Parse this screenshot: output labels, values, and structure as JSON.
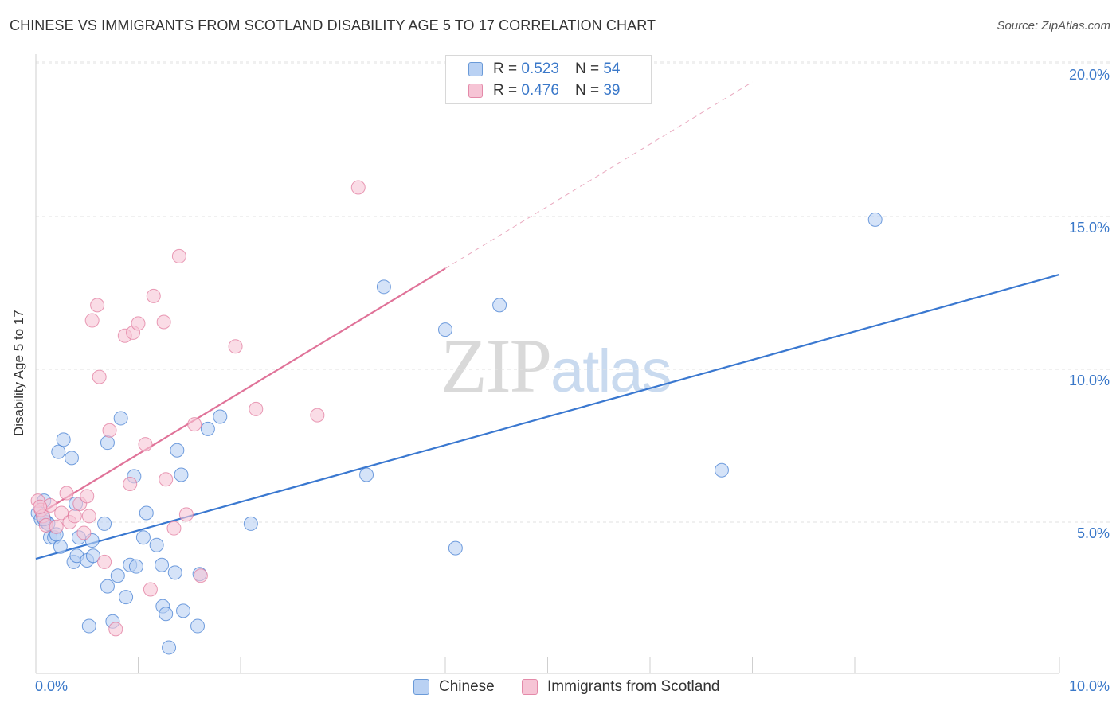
{
  "chart_data": {
    "type": "scatter",
    "title": "CHINESE VS IMMIGRANTS FROM SCOTLAND DISABILITY AGE 5 TO 17 CORRELATION CHART",
    "source": "Source: ZipAtlas.com",
    "ylabel": "Disability Age 5 to 17",
    "xlabel": "",
    "xlim": [
      0,
      10
    ],
    "ylim": [
      0,
      20
    ],
    "x_tick_labels": [
      {
        "value": 0,
        "label": "0.0%"
      },
      {
        "value": 10,
        "label": "10.0%"
      }
    ],
    "y_tick_labels": [
      {
        "value": 5,
        "label": "5.0%"
      },
      {
        "value": 10,
        "label": "10.0%"
      },
      {
        "value": 15,
        "label": "15.0%"
      },
      {
        "value": 20,
        "label": "20.0%"
      }
    ],
    "grid": true,
    "watermark": {
      "part1": "ZIP",
      "part2": "atlas"
    },
    "legend": {
      "placement": "top-center",
      "entries": [
        {
          "r_label": "R =",
          "r_value": "0.523",
          "n_label": "N =",
          "n_value": "54"
        },
        {
          "r_label": "R =",
          "r_value": "0.476",
          "n_label": "N =",
          "n_value": "39"
        }
      ]
    },
    "series": [
      {
        "name": "Chinese",
        "color": "#3a78d0",
        "fill": "#b9d1f3",
        "trend": {
          "x": [
            0.0,
            10.0
          ],
          "y": [
            3.8,
            13.1
          ]
        },
        "points": [
          [
            0.02,
            5.3
          ],
          [
            0.05,
            5.1
          ],
          [
            0.08,
            5.7
          ],
          [
            0.1,
            5.0
          ],
          [
            0.12,
            4.95
          ],
          [
            0.14,
            4.5
          ],
          [
            0.18,
            4.5
          ],
          [
            0.22,
            7.3
          ],
          [
            0.24,
            4.2
          ],
          [
            0.27,
            7.7
          ],
          [
            0.35,
            7.1
          ],
          [
            0.37,
            3.7
          ],
          [
            0.39,
            5.6
          ],
          [
            0.4,
            3.9
          ],
          [
            0.42,
            4.5
          ],
          [
            0.5,
            3.75
          ],
          [
            0.52,
            1.6
          ],
          [
            0.55,
            4.4
          ],
          [
            0.56,
            3.9
          ],
          [
            0.67,
            4.95
          ],
          [
            0.7,
            2.9
          ],
          [
            0.7,
            7.6
          ],
          [
            0.75,
            1.75
          ],
          [
            0.8,
            3.25
          ],
          [
            0.83,
            8.4
          ],
          [
            0.88,
            2.55
          ],
          [
            0.92,
            3.6
          ],
          [
            0.96,
            6.5
          ],
          [
            0.98,
            3.55
          ],
          [
            1.05,
            4.5
          ],
          [
            1.08,
            5.3
          ],
          [
            1.18,
            4.25
          ],
          [
            1.23,
            3.6
          ],
          [
            1.24,
            2.25
          ],
          [
            1.27,
            2.0
          ],
          [
            1.3,
            0.9
          ],
          [
            1.36,
            3.35
          ],
          [
            1.38,
            7.35
          ],
          [
            1.42,
            6.55
          ],
          [
            1.44,
            2.1
          ],
          [
            1.58,
            1.6
          ],
          [
            1.6,
            3.3
          ],
          [
            1.68,
            8.05
          ],
          [
            1.8,
            8.45
          ],
          [
            2.1,
            4.95
          ],
          [
            3.23,
            6.55
          ],
          [
            3.4,
            12.7
          ],
          [
            4.0,
            11.3
          ],
          [
            4.1,
            4.15
          ],
          [
            4.53,
            12.1
          ],
          [
            6.7,
            6.7
          ],
          [
            8.2,
            14.9
          ],
          [
            0.08,
            5.1
          ],
          [
            0.2,
            4.6
          ]
        ]
      },
      {
        "name": "Immigrants from Scotland",
        "color": "#e07399",
        "fill": "#f6c4d5",
        "trend": {
          "x": [
            0.0,
            4.0
          ],
          "y": [
            5.2,
            13.3
          ]
        },
        "trend_ext": {
          "x": [
            4.0,
            7.0
          ],
          "y": [
            13.3,
            19.4
          ]
        },
        "points": [
          [
            0.02,
            5.7
          ],
          [
            0.05,
            5.4
          ],
          [
            0.07,
            5.2
          ],
          [
            0.1,
            4.9
          ],
          [
            0.14,
            5.55
          ],
          [
            0.2,
            4.85
          ],
          [
            0.25,
            5.3
          ],
          [
            0.3,
            5.95
          ],
          [
            0.33,
            5.0
          ],
          [
            0.38,
            5.2
          ],
          [
            0.43,
            5.6
          ],
          [
            0.47,
            4.65
          ],
          [
            0.5,
            5.85
          ],
          [
            0.52,
            5.2
          ],
          [
            0.55,
            11.6
          ],
          [
            0.6,
            12.1
          ],
          [
            0.62,
            9.75
          ],
          [
            0.67,
            3.7
          ],
          [
            0.72,
            8.0
          ],
          [
            0.78,
            1.5
          ],
          [
            0.87,
            11.1
          ],
          [
            0.92,
            6.25
          ],
          [
            0.95,
            11.2
          ],
          [
            1.0,
            11.5
          ],
          [
            1.07,
            7.55
          ],
          [
            1.12,
            2.8
          ],
          [
            1.15,
            12.4
          ],
          [
            1.25,
            11.55
          ],
          [
            1.27,
            6.4
          ],
          [
            1.35,
            4.8
          ],
          [
            1.4,
            13.7
          ],
          [
            1.47,
            5.25
          ],
          [
            1.55,
            8.2
          ],
          [
            1.61,
            3.25
          ],
          [
            1.95,
            10.75
          ],
          [
            2.15,
            8.7
          ],
          [
            2.75,
            8.5
          ],
          [
            3.15,
            15.95
          ],
          [
            0.04,
            5.5
          ]
        ]
      }
    ]
  }
}
